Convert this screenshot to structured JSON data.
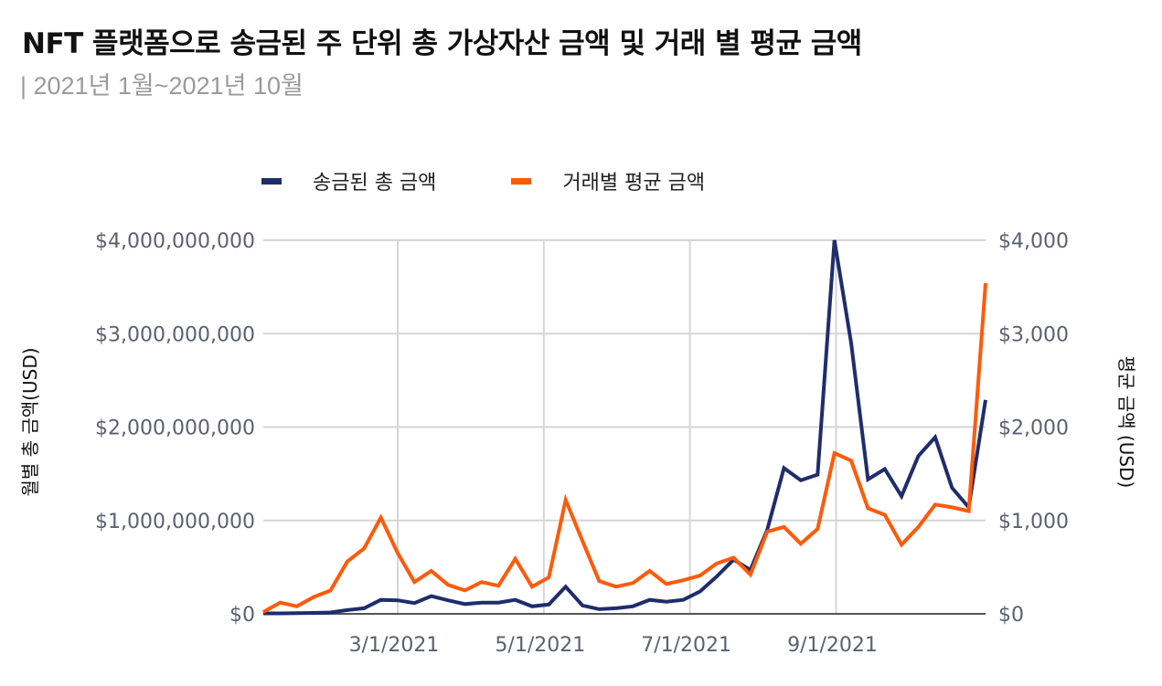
{
  "header": {
    "title": "NFT 플랫폼으로 송금된 주 단위 총 가상자산 금액 및 거래 별 평균 금액",
    "subtitle": "| 2021년 1월~2021년 10월"
  },
  "legend": {
    "items": [
      {
        "label": "송금된 총 금액",
        "color": "#1f2d6b"
      },
      {
        "label": "거래별 평균 금액",
        "color": "#ff5a0a"
      }
    ]
  },
  "axes": {
    "left_label": "월별 총 금액(USD)",
    "right_label": "평균 금액 (USD)",
    "left_ticks": [
      "$0",
      "$1,000,000,000",
      "$2,000,000,000",
      "$3,000,000,000",
      "$4,000,000,000"
    ],
    "right_ticks": [
      "$0",
      "$1,000",
      "$2,000",
      "$3,000",
      "$4,000"
    ],
    "x_ticks": [
      "3/1/2021",
      "5/1/2021",
      "7/1/2021",
      "9/1/2021"
    ]
  },
  "chart_data": {
    "type": "line",
    "title": "NFT 플랫폼으로 송금된 주 단위 총 가상자산 금액 및 거래 별 평균 금액",
    "subtitle": "| 2021년 1월~2021년 10월",
    "xlabel": "",
    "ylabel": "월별 총 금액(USD)",
    "ylabel_right": "평균 금액 (USD)",
    "ylim": [
      0,
      4000000000
    ],
    "ylim_right": [
      0,
      4000
    ],
    "x_tick_labels": [
      "3/1/2021",
      "5/1/2021",
      "7/1/2021",
      "9/1/2021"
    ],
    "grid": true,
    "legend_position": "top",
    "x": [
      "2021-01-04",
      "2021-01-11",
      "2021-01-18",
      "2021-01-25",
      "2021-02-01",
      "2021-02-08",
      "2021-02-15",
      "2021-02-22",
      "2021-03-01",
      "2021-03-08",
      "2021-03-15",
      "2021-03-22",
      "2021-03-29",
      "2021-04-05",
      "2021-04-12",
      "2021-04-19",
      "2021-04-26",
      "2021-05-03",
      "2021-05-10",
      "2021-05-17",
      "2021-05-24",
      "2021-05-31",
      "2021-06-07",
      "2021-06-14",
      "2021-06-21",
      "2021-06-28",
      "2021-07-05",
      "2021-07-12",
      "2021-07-19",
      "2021-07-26",
      "2021-08-02",
      "2021-08-09",
      "2021-08-16",
      "2021-08-23",
      "2021-08-30",
      "2021-09-06",
      "2021-09-13",
      "2021-09-20",
      "2021-09-27",
      "2021-10-04",
      "2021-10-11",
      "2021-10-18",
      "2021-10-25",
      "2021-11-01"
    ],
    "series": [
      {
        "name": "송금된 총 금액",
        "axis": "left",
        "color": "#1f2d6b",
        "values": [
          5000000,
          5000000,
          7000000,
          10000000,
          15000000,
          40000000,
          60000000,
          150000000,
          145000000,
          115000000,
          190000000,
          145000000,
          105000000,
          120000000,
          120000000,
          150000000,
          80000000,
          100000000,
          290000000,
          90000000,
          50000000,
          60000000,
          80000000,
          150000000,
          130000000,
          150000000,
          240000000,
          400000000,
          580000000,
          470000000,
          900000000,
          1560000000,
          1430000000,
          1490000000,
          4000000000,
          2900000000,
          1440000000,
          1550000000,
          1260000000,
          1690000000,
          1890000000,
          1350000000,
          1140000000,
          2290000000
        ]
      },
      {
        "name": "거래별 평균 금액",
        "axis": "right",
        "color": "#ff5a0a",
        "values": [
          20,
          120,
          80,
          180,
          250,
          560,
          700,
          1030,
          650,
          340,
          460,
          310,
          250,
          340,
          300,
          590,
          290,
          390,
          1220,
          780,
          350,
          290,
          330,
          460,
          320,
          360,
          410,
          540,
          600,
          420,
          880,
          930,
          750,
          910,
          1720,
          1640,
          1130,
          1060,
          740,
          930,
          1170,
          1140,
          1100,
          3540
        ]
      }
    ]
  }
}
